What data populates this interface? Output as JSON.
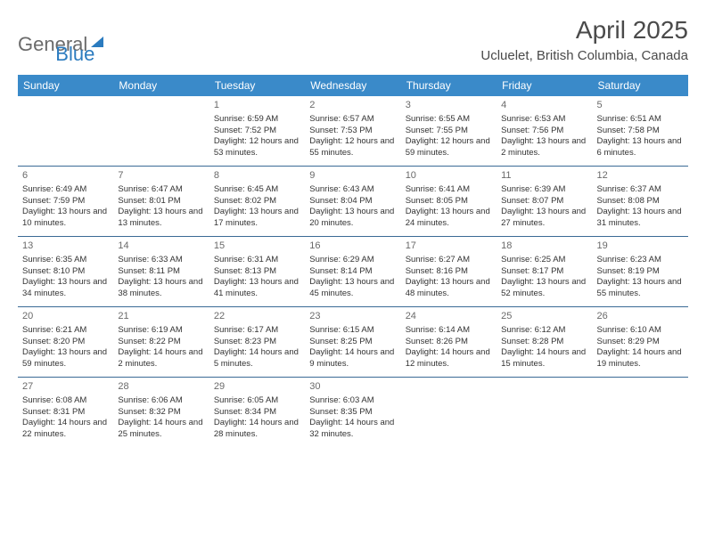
{
  "logo": {
    "text1": "General",
    "text2": "Blue"
  },
  "header": {
    "title": "April 2025",
    "location": "Ucluelet, British Columbia, Canada"
  },
  "dayNames": [
    "Sunday",
    "Monday",
    "Tuesday",
    "Wednesday",
    "Thursday",
    "Friday",
    "Saturday"
  ],
  "colors": {
    "headerBg": "#3a8ac9",
    "headerText": "#ffffff",
    "rowBorder": "#3a6a95",
    "text": "#333333",
    "titleText": "#4a4a4a",
    "logoGray": "#6b6b6b",
    "logoBlue": "#2b7bbf"
  },
  "weeks": [
    [
      null,
      null,
      {
        "n": "1",
        "sr": "Sunrise: 6:59 AM",
        "ss": "Sunset: 7:52 PM",
        "dl": "Daylight: 12 hours and 53 minutes."
      },
      {
        "n": "2",
        "sr": "Sunrise: 6:57 AM",
        "ss": "Sunset: 7:53 PM",
        "dl": "Daylight: 12 hours and 55 minutes."
      },
      {
        "n": "3",
        "sr": "Sunrise: 6:55 AM",
        "ss": "Sunset: 7:55 PM",
        "dl": "Daylight: 12 hours and 59 minutes."
      },
      {
        "n": "4",
        "sr": "Sunrise: 6:53 AM",
        "ss": "Sunset: 7:56 PM",
        "dl": "Daylight: 13 hours and 2 minutes."
      },
      {
        "n": "5",
        "sr": "Sunrise: 6:51 AM",
        "ss": "Sunset: 7:58 PM",
        "dl": "Daylight: 13 hours and 6 minutes."
      }
    ],
    [
      {
        "n": "6",
        "sr": "Sunrise: 6:49 AM",
        "ss": "Sunset: 7:59 PM",
        "dl": "Daylight: 13 hours and 10 minutes."
      },
      {
        "n": "7",
        "sr": "Sunrise: 6:47 AM",
        "ss": "Sunset: 8:01 PM",
        "dl": "Daylight: 13 hours and 13 minutes."
      },
      {
        "n": "8",
        "sr": "Sunrise: 6:45 AM",
        "ss": "Sunset: 8:02 PM",
        "dl": "Daylight: 13 hours and 17 minutes."
      },
      {
        "n": "9",
        "sr": "Sunrise: 6:43 AM",
        "ss": "Sunset: 8:04 PM",
        "dl": "Daylight: 13 hours and 20 minutes."
      },
      {
        "n": "10",
        "sr": "Sunrise: 6:41 AM",
        "ss": "Sunset: 8:05 PM",
        "dl": "Daylight: 13 hours and 24 minutes."
      },
      {
        "n": "11",
        "sr": "Sunrise: 6:39 AM",
        "ss": "Sunset: 8:07 PM",
        "dl": "Daylight: 13 hours and 27 minutes."
      },
      {
        "n": "12",
        "sr": "Sunrise: 6:37 AM",
        "ss": "Sunset: 8:08 PM",
        "dl": "Daylight: 13 hours and 31 minutes."
      }
    ],
    [
      {
        "n": "13",
        "sr": "Sunrise: 6:35 AM",
        "ss": "Sunset: 8:10 PM",
        "dl": "Daylight: 13 hours and 34 minutes."
      },
      {
        "n": "14",
        "sr": "Sunrise: 6:33 AM",
        "ss": "Sunset: 8:11 PM",
        "dl": "Daylight: 13 hours and 38 minutes."
      },
      {
        "n": "15",
        "sr": "Sunrise: 6:31 AM",
        "ss": "Sunset: 8:13 PM",
        "dl": "Daylight: 13 hours and 41 minutes."
      },
      {
        "n": "16",
        "sr": "Sunrise: 6:29 AM",
        "ss": "Sunset: 8:14 PM",
        "dl": "Daylight: 13 hours and 45 minutes."
      },
      {
        "n": "17",
        "sr": "Sunrise: 6:27 AM",
        "ss": "Sunset: 8:16 PM",
        "dl": "Daylight: 13 hours and 48 minutes."
      },
      {
        "n": "18",
        "sr": "Sunrise: 6:25 AM",
        "ss": "Sunset: 8:17 PM",
        "dl": "Daylight: 13 hours and 52 minutes."
      },
      {
        "n": "19",
        "sr": "Sunrise: 6:23 AM",
        "ss": "Sunset: 8:19 PM",
        "dl": "Daylight: 13 hours and 55 minutes."
      }
    ],
    [
      {
        "n": "20",
        "sr": "Sunrise: 6:21 AM",
        "ss": "Sunset: 8:20 PM",
        "dl": "Daylight: 13 hours and 59 minutes."
      },
      {
        "n": "21",
        "sr": "Sunrise: 6:19 AM",
        "ss": "Sunset: 8:22 PM",
        "dl": "Daylight: 14 hours and 2 minutes."
      },
      {
        "n": "22",
        "sr": "Sunrise: 6:17 AM",
        "ss": "Sunset: 8:23 PM",
        "dl": "Daylight: 14 hours and 5 minutes."
      },
      {
        "n": "23",
        "sr": "Sunrise: 6:15 AM",
        "ss": "Sunset: 8:25 PM",
        "dl": "Daylight: 14 hours and 9 minutes."
      },
      {
        "n": "24",
        "sr": "Sunrise: 6:14 AM",
        "ss": "Sunset: 8:26 PM",
        "dl": "Daylight: 14 hours and 12 minutes."
      },
      {
        "n": "25",
        "sr": "Sunrise: 6:12 AM",
        "ss": "Sunset: 8:28 PM",
        "dl": "Daylight: 14 hours and 15 minutes."
      },
      {
        "n": "26",
        "sr": "Sunrise: 6:10 AM",
        "ss": "Sunset: 8:29 PM",
        "dl": "Daylight: 14 hours and 19 minutes."
      }
    ],
    [
      {
        "n": "27",
        "sr": "Sunrise: 6:08 AM",
        "ss": "Sunset: 8:31 PM",
        "dl": "Daylight: 14 hours and 22 minutes."
      },
      {
        "n": "28",
        "sr": "Sunrise: 6:06 AM",
        "ss": "Sunset: 8:32 PM",
        "dl": "Daylight: 14 hours and 25 minutes."
      },
      {
        "n": "29",
        "sr": "Sunrise: 6:05 AM",
        "ss": "Sunset: 8:34 PM",
        "dl": "Daylight: 14 hours and 28 minutes."
      },
      {
        "n": "30",
        "sr": "Sunrise: 6:03 AM",
        "ss": "Sunset: 8:35 PM",
        "dl": "Daylight: 14 hours and 32 minutes."
      },
      null,
      null,
      null
    ]
  ]
}
